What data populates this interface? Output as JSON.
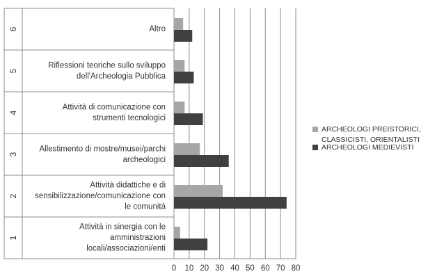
{
  "chart_data": {
    "type": "bar",
    "orientation": "horizontal",
    "row_numbers": [
      "1",
      "2",
      "3",
      "4",
      "5",
      "6"
    ],
    "categories": [
      [
        "Attività in sinergia con le",
        "amministrazioni",
        "locali/associazioni/enti"
      ],
      [
        "Attività didattiche e di",
        "sensibilizzazione/comunicazione con",
        "le comunità"
      ],
      [
        "Allestimento di mostre/musei/parchi",
        "archeologici"
      ],
      [
        "Attività di comunicazione con",
        "strumenti tecnologici"
      ],
      [
        "Riflessioni teoriche sullo sviluppo",
        "dell'Archeologia Pubblica"
      ],
      [
        "Altro"
      ]
    ],
    "series": [
      {
        "name": "ARCHEOLOGI PREISTORICI, CLASSICISTI, ORIENTALISTI",
        "legend_lines": [
          "ARCHEOLOGI PREISTORICI,",
          "CLASSICISTI, ORIENTALISTI"
        ],
        "color": "#A6A6A6",
        "values": [
          4,
          32,
          17,
          7,
          7,
          6
        ]
      },
      {
        "name": "ARCHEOLOGI MEDIEVISTI",
        "legend_lines": [
          "ARCHEOLOGI MEDIEVISTI"
        ],
        "color": "#404040",
        "values": [
          22,
          74,
          36,
          19,
          13,
          12
        ]
      }
    ],
    "xticks": [
      0,
      10,
      20,
      30,
      40,
      50,
      60,
      70,
      80
    ],
    "xlim": [
      0,
      80
    ],
    "grid": true,
    "legend_position": "right"
  }
}
